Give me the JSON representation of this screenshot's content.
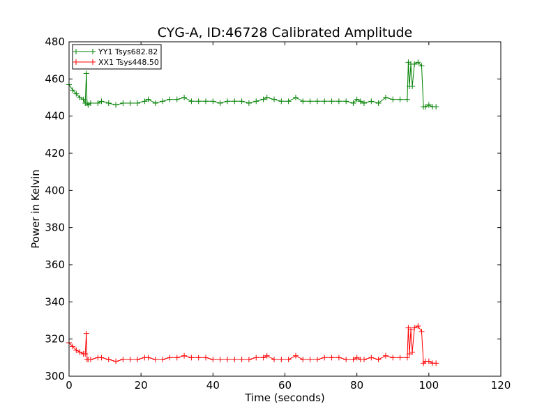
{
  "chart_data": {
    "type": "line",
    "title": "CYG-A, ID:46728 Calibrated Amplitude",
    "xlabel": "Time (seconds)",
    "ylabel": "Power in Kelvin",
    "xlim": [
      0,
      120
    ],
    "ylim": [
      300,
      480
    ],
    "xticks": [
      0,
      20,
      40,
      60,
      80,
      100,
      120
    ],
    "yticks": [
      300,
      320,
      340,
      360,
      380,
      400,
      420,
      440,
      460,
      480
    ],
    "grid": false,
    "legend_position": "top-left",
    "marker": "+",
    "series": [
      {
        "name": "YY1 Tsys682.82",
        "color": "#008000",
        "x": [
          0,
          1,
          2,
          3,
          4,
          4.5,
          4.8,
          5.0,
          5.3,
          6,
          8,
          9,
          11,
          13,
          15,
          17,
          19,
          21,
          22,
          24,
          26,
          28,
          30,
          32,
          34,
          36,
          38,
          40,
          42,
          44,
          46,
          48,
          50,
          52,
          54,
          55,
          57,
          59,
          61,
          63,
          65,
          67,
          69,
          71,
          73,
          75,
          77,
          79,
          80,
          81,
          82,
          84,
          86,
          88,
          90,
          92,
          94,
          94.3,
          94.6,
          95,
          95.4,
          96,
          97,
          98,
          98.5,
          99,
          100,
          101,
          102
        ],
        "y": [
          457,
          454,
          452,
          450,
          449,
          447,
          463,
          447,
          446,
          447,
          447,
          448,
          447,
          446,
          447,
          447,
          447,
          448,
          449,
          447,
          448,
          449,
          449,
          450,
          448,
          448,
          448,
          448,
          447,
          448,
          448,
          448,
          447,
          448,
          449,
          450,
          449,
          448,
          448,
          450,
          448,
          448,
          448,
          448,
          448,
          448,
          448,
          447,
          449,
          448,
          447,
          448,
          447,
          450,
          449,
          449,
          449,
          469,
          456,
          468,
          456,
          468,
          469,
          467,
          445,
          445,
          446,
          445,
          445
        ]
      },
      {
        "name": "XX1 Tsys448.50",
        "color": "#ff0000",
        "x": [
          0,
          1,
          2,
          3,
          4,
          4.5,
          4.8,
          5.0,
          5.3,
          6,
          8,
          9,
          11,
          13,
          15,
          17,
          19,
          21,
          22,
          24,
          26,
          28,
          30,
          32,
          34,
          36,
          38,
          40,
          42,
          44,
          46,
          48,
          50,
          52,
          54,
          55,
          57,
          59,
          61,
          63,
          65,
          67,
          69,
          71,
          73,
          75,
          77,
          79,
          80,
          81,
          82,
          84,
          86,
          88,
          90,
          92,
          94,
          94.3,
          94.6,
          95,
          95.4,
          96,
          97,
          98,
          98.5,
          99,
          100,
          101,
          102
        ],
        "y": [
          318,
          316,
          314,
          313,
          312,
          312,
          323,
          309,
          309,
          309,
          310,
          310,
          309,
          308,
          309,
          309,
          309,
          310,
          310,
          309,
          309,
          310,
          310,
          311,
          310,
          310,
          310,
          309,
          309,
          309,
          309,
          309,
          309,
          310,
          310,
          311,
          309,
          309,
          309,
          311,
          309,
          309,
          309,
          310,
          310,
          310,
          309,
          309,
          310,
          309,
          309,
          310,
          309,
          311,
          310,
          310,
          310,
          326,
          312,
          325,
          313,
          326,
          327,
          324,
          307,
          308,
          308,
          307,
          307
        ]
      }
    ]
  }
}
